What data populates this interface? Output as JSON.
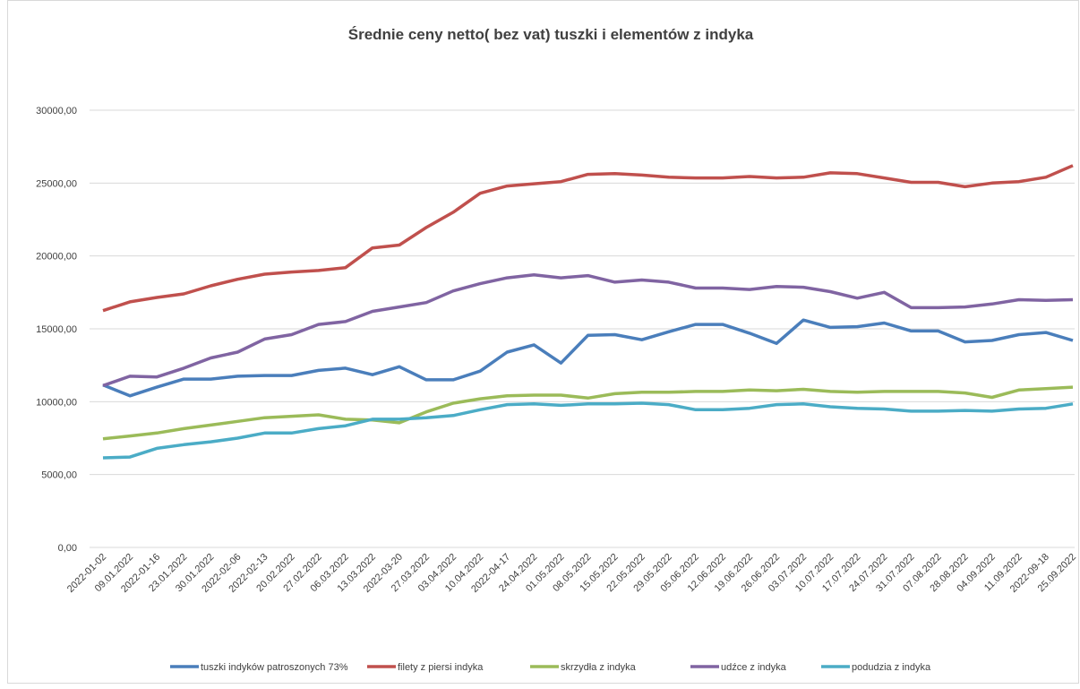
{
  "chart_data": {
    "type": "line",
    "title": "Średnie ceny netto( bez vat) tuszki i elementów z indyka",
    "categories": [
      "2022-01-02",
      "09.01.2022",
      "2022-01-16",
      "23.01.2022",
      "30.01.2022",
      "2022-02-06",
      "2022-02-13",
      "20.02.2022",
      "27.02.2022",
      "06.03.2022",
      "13.03.2022",
      "2022-03-20",
      "27.03.2022",
      "03.04.2022",
      "10.04.2022",
      "2022-04-17",
      "24.04.2022",
      "01.05.2022",
      "08.05.2022",
      "15.05.2022",
      "22.05.2022",
      "29.05.2022",
      "05.06.2022",
      "12.06.2022",
      "19.06.2022",
      "26.06.2022",
      "03.07.2022",
      "10.07.2022",
      "17.07.2022",
      "24.07.2022",
      "31.07.2022",
      "07.08.2022",
      "28.08.2022",
      "04.09.2022",
      "11.09.2022",
      "2022-09-18",
      "25.09.2022"
    ],
    "series": [
      {
        "name": "tuszki indyków patroszonych 73%",
        "color": "#4a7ebb",
        "values": [
          11150,
          10400,
          11000,
          11550,
          11550,
          11750,
          11800,
          11800,
          12150,
          12300,
          11850,
          12400,
          11500,
          11500,
          12100,
          13400,
          13900,
          12650,
          14550,
          14600,
          14250,
          14800,
          15300,
          15300,
          14700,
          14000,
          15600,
          15100,
          15150,
          15400,
          14850,
          14850,
          14100,
          14200,
          14600,
          14750,
          14200
        ]
      },
      {
        "name": "filety z piersi indyka",
        "color": "#c0504d",
        "values": [
          16250,
          16850,
          17150,
          17400,
          17950,
          18400,
          18750,
          18900,
          19000,
          19200,
          20550,
          20750,
          21950,
          23000,
          24300,
          24800,
          24950,
          25100,
          25600,
          25650,
          25550,
          25400,
          25350,
          25350,
          25450,
          25350,
          25400,
          25700,
          25650,
          25350,
          25050,
          25050,
          24750,
          25000,
          25100,
          25400,
          26200
        ]
      },
      {
        "name": "skrzydła z indyka",
        "color": "#9bbb59",
        "values": [
          7450,
          7650,
          7850,
          8150,
          8400,
          8650,
          8900,
          9000,
          9100,
          8800,
          8750,
          8550,
          9300,
          9900,
          10200,
          10400,
          10450,
          10450,
          10250,
          10550,
          10650,
          10650,
          10700,
          10700,
          10800,
          10750,
          10850,
          10700,
          10650,
          10700,
          10700,
          10700,
          10600,
          10300,
          10800,
          10900,
          11000
        ]
      },
      {
        "name": "udźce z indyka",
        "color": "#8064a2",
        "values": [
          11100,
          11750,
          11700,
          12300,
          13000,
          13400,
          14300,
          14600,
          15300,
          15500,
          16200,
          16500,
          16800,
          17600,
          18100,
          18500,
          18700,
          18500,
          18650,
          18200,
          18350,
          18200,
          17800,
          17800,
          17700,
          17900,
          17850,
          17550,
          17100,
          17500,
          16450,
          16450,
          16500,
          16700,
          17000,
          16950,
          17000
        ]
      },
      {
        "name": "podudzia z indyka",
        "color": "#4bacc6",
        "values": [
          6150,
          6200,
          6800,
          7050,
          7250,
          7500,
          7850,
          7850,
          8150,
          8350,
          8800,
          8800,
          8900,
          9050,
          9450,
          9800,
          9850,
          9750,
          9850,
          9850,
          9900,
          9800,
          9450,
          9450,
          9550,
          9800,
          9850,
          9650,
          9550,
          9500,
          9350,
          9350,
          9400,
          9350,
          9500,
          9550,
          9850
        ]
      }
    ],
    "ylim": [
      0,
      30000
    ],
    "yticks": [
      {
        "value": 0,
        "label": "0,00"
      },
      {
        "value": 5000,
        "label": "5000,00"
      },
      {
        "value": 10000,
        "label": "10000,00"
      },
      {
        "value": 15000,
        "label": "15000,00"
      },
      {
        "value": 20000,
        "label": "20000,00"
      },
      {
        "value": 25000,
        "label": "25000,00"
      },
      {
        "value": 30000,
        "label": "30000,00"
      }
    ],
    "grid": true,
    "legend": "bottom"
  }
}
